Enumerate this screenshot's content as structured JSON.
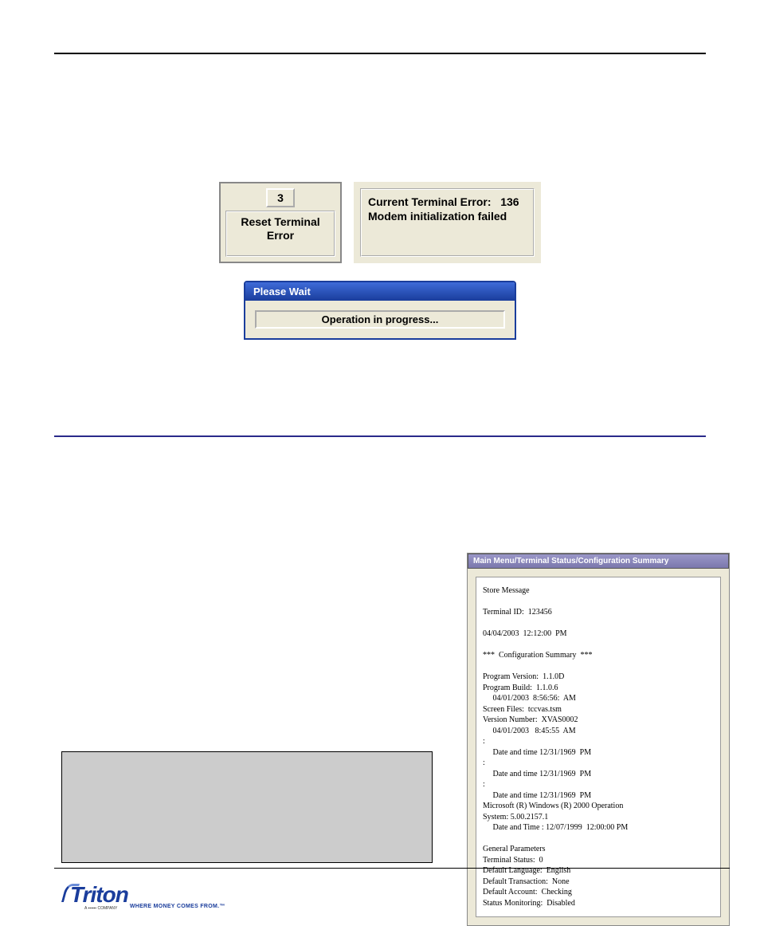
{
  "reset_box": {
    "key": "3",
    "label_line1": "Reset Terminal",
    "label_line2": "Error"
  },
  "error_box": {
    "line1_label": "Current Terminal Error:",
    "line1_value": "136",
    "line2": "Modem initialization failed"
  },
  "progress": {
    "title": "Please Wait",
    "message": "Operation in progress..."
  },
  "config_window": {
    "title": "Main Menu/Terminal Status/Configuration Summary",
    "lines": [
      "Store Message",
      "",
      "Terminal ID:  123456",
      "",
      "04/04/2003  12:12:00  PM",
      "",
      "***  Configuration Summary  ***",
      "",
      "Program Version:  1.1.0D",
      "Program Build:  1.1.0.6",
      "     04/01/2003  8:56:56:  AM",
      "Screen Files:  tccvas.tsm",
      "Version Number:  XVAS0002",
      "     04/01/2003   8:45:55  AM",
      ":",
      "     Date and time 12/31/1969  PM",
      ":",
      "     Date and time 12/31/1969  PM",
      ":",
      "     Date and time 12/31/1969  PM",
      "Microsoft (R) Windows (R) 2000 Operation",
      "System: 5.00.2157.1",
      "     Date and Time : 12/07/1999  12:00:00 PM",
      "",
      "General Parameters",
      "Terminal Status:  0",
      "Default Language:  English",
      "Default Transaction:  None",
      "Default Account:  Checking",
      "Status Monitoring:  Disabled"
    ]
  },
  "logo": {
    "name": "Triton",
    "tagline": "WHERE MONEY COMES FROM.™",
    "sub": "A ▪▪▪▪▪▪ COMPANY"
  },
  "colors": {
    "page_bg": "#ffffff",
    "ui_bg": "#ece9d8",
    "blue_title_start": "#3e6bd8",
    "blue_title_end": "#1a3d9c",
    "midline": "#2a2a8a",
    "callout_bg": "#cccccc",
    "logo_blue": "#1a3d9c"
  }
}
